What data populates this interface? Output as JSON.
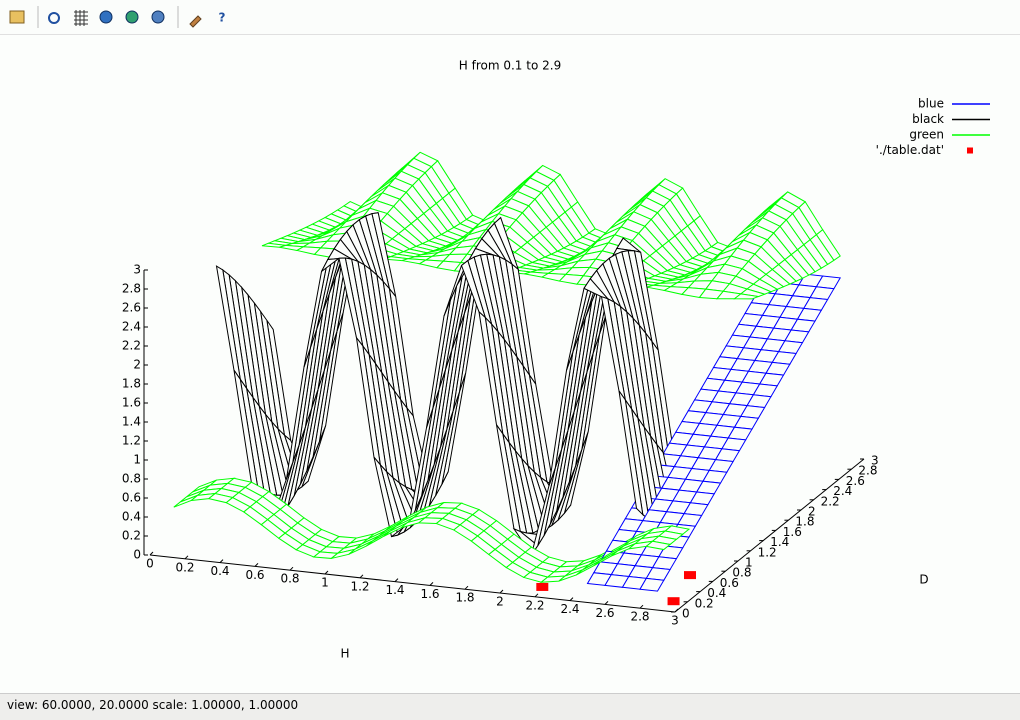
{
  "toolbar": {
    "help": "?"
  },
  "chart_data": {
    "type": "surface3d",
    "title": "H from 0.1 to 2.9",
    "x_label": "H",
    "y_label": "D",
    "xlim": [
      0,
      3
    ],
    "xticks": [
      0,
      0.2,
      0.4,
      0.6,
      0.8,
      1,
      1.2,
      1.4,
      1.6,
      1.8,
      2,
      2.2,
      2.4,
      2.6,
      2.8,
      3
    ],
    "ylim": [
      0,
      3
    ],
    "yticks": [
      0,
      0.2,
      0.4,
      0.6,
      0.8,
      1,
      1.2,
      1.4,
      1.6,
      1.8,
      2,
      2.2,
      2.4,
      2.6,
      2.8,
      3
    ],
    "zlim": [
      0,
      3
    ],
    "zticks": [
      0,
      0.2,
      0.4,
      0.6,
      0.8,
      1,
      1.2,
      1.4,
      1.6,
      1.8,
      2,
      2.2,
      2.4,
      2.6,
      2.8,
      3
    ],
    "series": [
      {
        "name": "blue",
        "color": "#0000ff"
      },
      {
        "name": "black",
        "color": "#000000"
      },
      {
        "name": "green",
        "color": "#00ff00"
      },
      {
        "name": "'./table.dat'",
        "color": "#ff0000"
      }
    ]
  },
  "status_bar": "view: 60.0000, 20.0000  scale: 1.00000, 1.00000"
}
